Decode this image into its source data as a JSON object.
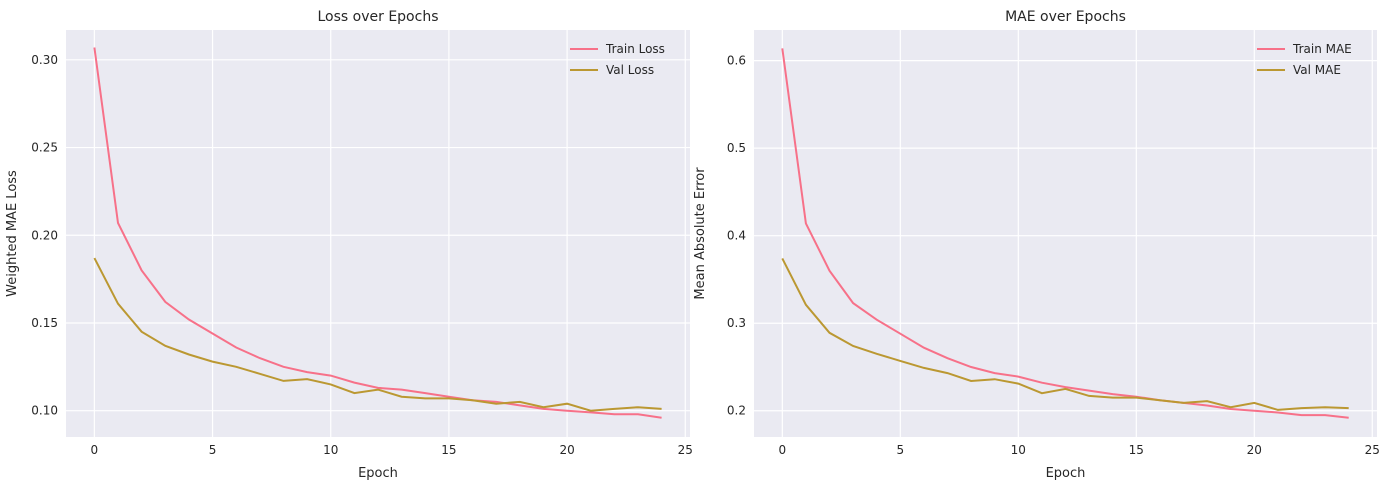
{
  "colors": {
    "train": "#f77189",
    "val": "#bb9832",
    "background": "#eaeaf2",
    "grid": "#ffffff"
  },
  "chart_data": [
    {
      "type": "line",
      "title": "Loss over Epochs",
      "xlabel": "Epoch",
      "ylabel": "Weighted MAE Loss",
      "xlim": [
        -1.2,
        25.2
      ],
      "ylim": [
        0.085,
        0.317
      ],
      "xticks": [
        0,
        5,
        10,
        15,
        20,
        25
      ],
      "yticks": [
        0.1,
        0.15,
        0.2,
        0.25,
        0.3
      ],
      "ytick_labels": [
        "0.10",
        "0.15",
        "0.20",
        "0.25",
        "0.30"
      ],
      "grid": true,
      "legend": "top-right",
      "x": [
        0,
        1,
        2,
        3,
        4,
        5,
        6,
        7,
        8,
        9,
        10,
        11,
        12,
        13,
        14,
        15,
        16,
        17,
        18,
        19,
        20,
        21,
        22,
        23,
        24
      ],
      "series": [
        {
          "name": "Train Loss",
          "values": [
            0.307,
            0.207,
            0.18,
            0.162,
            0.152,
            0.144,
            0.136,
            0.13,
            0.125,
            0.122,
            0.12,
            0.116,
            0.113,
            0.112,
            0.11,
            0.108,
            0.106,
            0.105,
            0.103,
            0.101,
            0.1,
            0.099,
            0.098,
            0.098,
            0.096
          ]
        },
        {
          "name": "Val Loss",
          "values": [
            0.187,
            0.161,
            0.145,
            0.137,
            0.132,
            0.128,
            0.125,
            0.121,
            0.117,
            0.118,
            0.115,
            0.11,
            0.112,
            0.108,
            0.107,
            0.107,
            0.106,
            0.104,
            0.105,
            0.102,
            0.104,
            0.1,
            0.101,
            0.102,
            0.101
          ]
        }
      ]
    },
    {
      "type": "line",
      "title": "MAE over Epochs",
      "xlabel": "Epoch",
      "ylabel": "Mean Absolute Error",
      "xlim": [
        -1.2,
        25.2
      ],
      "ylim": [
        0.17,
        0.635
      ],
      "xticks": [
        0,
        5,
        10,
        15,
        20,
        25
      ],
      "yticks": [
        0.2,
        0.3,
        0.4,
        0.5,
        0.6
      ],
      "ytick_labels": [
        "0.2",
        "0.3",
        "0.4",
        "0.5",
        "0.6"
      ],
      "grid": true,
      "legend": "top-right",
      "x": [
        0,
        1,
        2,
        3,
        4,
        5,
        6,
        7,
        8,
        9,
        10,
        11,
        12,
        13,
        14,
        15,
        16,
        17,
        18,
        19,
        20,
        21,
        22,
        23,
        24
      ],
      "series": [
        {
          "name": "Train MAE",
          "values": [
            0.614,
            0.414,
            0.36,
            0.323,
            0.304,
            0.288,
            0.272,
            0.26,
            0.25,
            0.243,
            0.239,
            0.232,
            0.227,
            0.223,
            0.219,
            0.216,
            0.212,
            0.209,
            0.206,
            0.202,
            0.2,
            0.198,
            0.195,
            0.195,
            0.192
          ]
        },
        {
          "name": "Val MAE",
          "values": [
            0.374,
            0.321,
            0.289,
            0.274,
            0.265,
            0.257,
            0.249,
            0.243,
            0.234,
            0.236,
            0.231,
            0.22,
            0.225,
            0.217,
            0.215,
            0.215,
            0.212,
            0.209,
            0.211,
            0.204,
            0.209,
            0.201,
            0.203,
            0.204,
            0.203
          ]
        }
      ]
    }
  ]
}
